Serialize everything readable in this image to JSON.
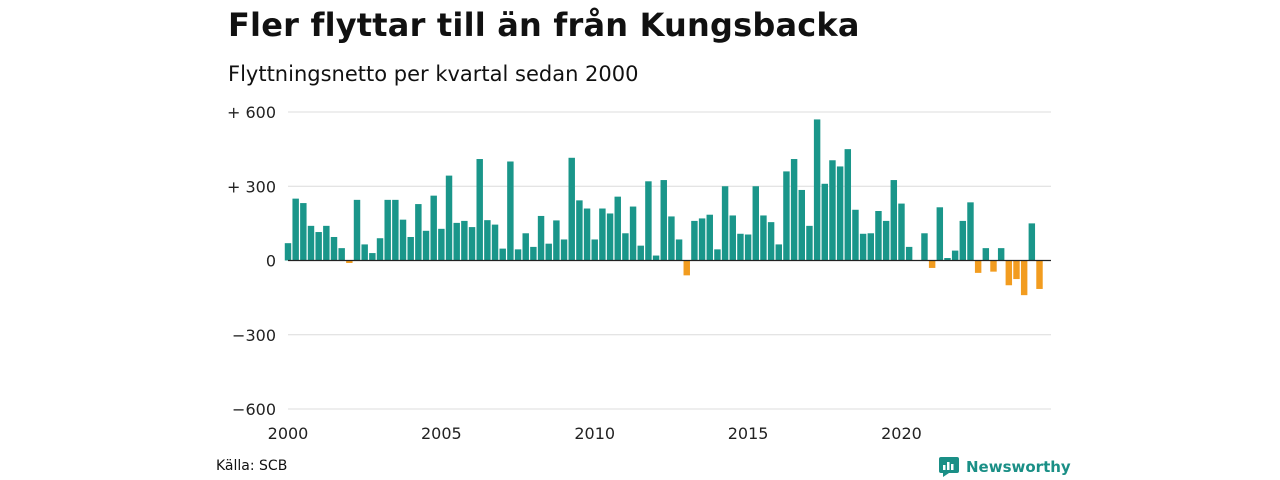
{
  "title": "Fler flyttar till än från Kungsbacka",
  "subtitle": "Flyttningsnetto per kvartal sedan 2000",
  "source": "Källa: SCB",
  "brand": {
    "name": "Newsworthy",
    "icon": "newsworthy-logo-icon"
  },
  "colors": {
    "positive": "#1a968a",
    "negative": "#f29c1f",
    "grid": "#dcdcdc",
    "axis": "#222222",
    "logo": "#1a8f86"
  },
  "chart_data": {
    "type": "bar",
    "title": "Fler flyttar till än från Kungsbacka",
    "subtitle": "Flyttningsnetto per kvartal sedan 2000",
    "xlabel": "",
    "ylabel": "",
    "x_start_year": 2000,
    "periods_per_year": 4,
    "xlim": [
      2000,
      2024.875
    ],
    "ylim": [
      -600,
      600
    ],
    "yticks": [
      600,
      300,
      0,
      -300,
      -600
    ],
    "ytick_labels": [
      "+ 600",
      "+ 300",
      "0",
      "−300",
      "−600"
    ],
    "xticks": [
      2000,
      2005,
      2010,
      2015,
      2020
    ],
    "xtick_labels": [
      "2000",
      "2005",
      "2010",
      "2015",
      "2020"
    ],
    "grid": true,
    "values": [
      70,
      250,
      232,
      140,
      115,
      140,
      95,
      50,
      -10,
      245,
      65,
      30,
      90,
      245,
      245,
      165,
      95,
      228,
      120,
      262,
      128,
      343,
      152,
      160,
      135,
      410,
      163,
      145,
      48,
      400,
      45,
      110,
      55,
      180,
      68,
      162,
      85,
      415,
      243,
      210,
      85,
      210,
      190,
      258,
      110,
      218,
      60,
      320,
      20,
      325,
      178,
      85,
      -60,
      160,
      170,
      185,
      45,
      300,
      182,
      108,
      105,
      300,
      182,
      155,
      65,
      360,
      410,
      285,
      140,
      570,
      310,
      405,
      380,
      450,
      205,
      108,
      110,
      200,
      160,
      325,
      230,
      55,
      0,
      110,
      -30,
      215,
      10,
      40,
      160,
      235,
      -50,
      50,
      -45,
      50,
      -100,
      -75,
      -140,
      150,
      -115
    ]
  }
}
